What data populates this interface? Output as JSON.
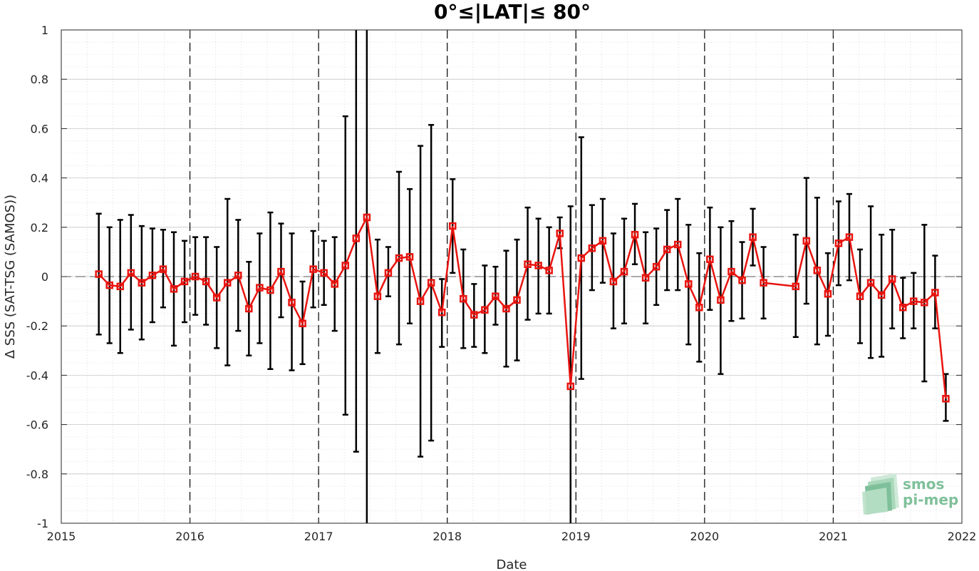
{
  "chart_data": {
    "type": "line",
    "title": "0°≤|LAT|≤ 80°",
    "xlabel": "Date",
    "ylabel": "Δ SSS (SAT-TSG (SAMOS))",
    "xlim": [
      2015,
      2022
    ],
    "ylim": [
      -1,
      1
    ],
    "x_ticks": [
      2015,
      2016,
      2017,
      2018,
      2019,
      2020,
      2021,
      2022
    ],
    "x_tick_labels": [
      "2015",
      "2016",
      "2017",
      "2018",
      "2019",
      "2020",
      "2021",
      "2022"
    ],
    "y_ticks": [
      -1,
      -0.8,
      -0.6,
      -0.4,
      -0.2,
      0,
      0.2,
      0.4,
      0.6,
      0.8,
      1
    ],
    "y_tick_labels": [
      "-1",
      "-0.8",
      "-0.6",
      "-0.4",
      "-0.2",
      "0",
      "0.2",
      "0.4",
      "0.6",
      "0.8",
      "1"
    ],
    "year_lines": [
      2016,
      2017,
      2018,
      2019,
      2020,
      2021
    ],
    "grid": true,
    "zero_line": true,
    "series": [
      {
        "color": "#e8140f",
        "errorbar_color": "#000000",
        "marker": "square",
        "points": [
          {
            "x": "2015-04",
            "y": 0.01,
            "lo": -0.235,
            "hi": 0.255
          },
          {
            "x": "2015-05",
            "y": -0.035,
            "lo": -0.27,
            "hi": 0.2
          },
          {
            "x": "2015-06",
            "y": -0.04,
            "lo": -0.31,
            "hi": 0.23
          },
          {
            "x": "2015-07",
            "y": 0.015,
            "lo": -0.215,
            "hi": 0.25
          },
          {
            "x": "2015-08",
            "y": -0.025,
            "lo": -0.255,
            "hi": 0.205
          },
          {
            "x": "2015-09",
            "y": 0.005,
            "lo": -0.185,
            "hi": 0.195
          },
          {
            "x": "2015-10",
            "y": 0.03,
            "lo": -0.125,
            "hi": 0.19
          },
          {
            "x": "2015-11",
            "y": -0.05,
            "lo": -0.28,
            "hi": 0.18
          },
          {
            "x": "2015-12",
            "y": -0.02,
            "lo": -0.185,
            "hi": 0.145
          },
          {
            "x": "2016-01",
            "y": 0.0,
            "lo": -0.155,
            "hi": 0.16
          },
          {
            "x": "2016-02",
            "y": -0.02,
            "lo": -0.195,
            "hi": 0.16
          },
          {
            "x": "2016-03",
            "y": -0.085,
            "lo": -0.29,
            "hi": 0.12
          },
          {
            "x": "2016-04",
            "y": -0.025,
            "lo": -0.36,
            "hi": 0.315
          },
          {
            "x": "2016-05",
            "y": 0.005,
            "lo": -0.22,
            "hi": 0.23
          },
          {
            "x": "2016-06",
            "y": -0.13,
            "lo": -0.32,
            "hi": 0.06
          },
          {
            "x": "2016-07",
            "y": -0.045,
            "lo": -0.27,
            "hi": 0.175
          },
          {
            "x": "2016-08",
            "y": -0.055,
            "lo": -0.375,
            "hi": 0.26
          },
          {
            "x": "2016-09",
            "y": 0.02,
            "lo": -0.165,
            "hi": 0.215
          },
          {
            "x": "2016-10",
            "y": -0.105,
            "lo": -0.38,
            "hi": 0.175
          },
          {
            "x": "2016-11",
            "y": -0.19,
            "lo": -0.355,
            "hi": -0.02
          },
          {
            "x": "2016-12",
            "y": 0.03,
            "lo": -0.125,
            "hi": 0.185
          },
          {
            "x": "2017-01",
            "y": 0.015,
            "lo": -0.115,
            "hi": 0.145
          },
          {
            "x": "2017-02",
            "y": -0.03,
            "lo": -0.22,
            "hi": 0.16
          },
          {
            "x": "2017-03",
            "y": 0.045,
            "lo": -0.56,
            "hi": 0.65
          },
          {
            "x": "2017-04",
            "y": 0.155,
            "lo": -0.71,
            "hi": 1.0
          },
          {
            "x": "2017-05",
            "y": 0.24,
            "lo": -1.0,
            "hi": 1.0
          },
          {
            "x": "2017-06",
            "y": -0.08,
            "lo": -0.31,
            "hi": 0.15
          },
          {
            "x": "2017-07",
            "y": 0.015,
            "lo": -0.08,
            "hi": 0.12
          },
          {
            "x": "2017-08",
            "y": 0.075,
            "lo": -0.275,
            "hi": 0.425
          },
          {
            "x": "2017-09",
            "y": 0.08,
            "lo": -0.19,
            "hi": 0.355
          },
          {
            "x": "2017-10",
            "y": -0.1,
            "lo": -0.73,
            "hi": 0.53
          },
          {
            "x": "2017-11",
            "y": -0.025,
            "lo": -0.665,
            "hi": 0.615
          },
          {
            "x": "2017-12",
            "y": -0.145,
            "lo": -0.285,
            "hi": -0.01
          },
          {
            "x": "2018-01",
            "y": 0.205,
            "lo": 0.015,
            "hi": 0.395
          },
          {
            "x": "2018-02",
            "y": -0.09,
            "lo": -0.29,
            "hi": 0.11
          },
          {
            "x": "2018-03",
            "y": -0.155,
            "lo": -0.285,
            "hi": -0.03
          },
          {
            "x": "2018-04",
            "y": -0.135,
            "lo": -0.31,
            "hi": 0.045
          },
          {
            "x": "2018-05",
            "y": -0.08,
            "lo": -0.195,
            "hi": 0.04
          },
          {
            "x": "2018-06",
            "y": -0.13,
            "lo": -0.365,
            "hi": 0.105
          },
          {
            "x": "2018-07",
            "y": -0.095,
            "lo": -0.34,
            "hi": 0.15
          },
          {
            "x": "2018-08",
            "y": 0.05,
            "lo": -0.175,
            "hi": 0.28
          },
          {
            "x": "2018-09",
            "y": 0.045,
            "lo": -0.15,
            "hi": 0.235
          },
          {
            "x": "2018-10",
            "y": 0.025,
            "lo": -0.15,
            "hi": 0.2
          },
          {
            "x": "2018-11",
            "y": 0.175,
            "lo": 0.115,
            "hi": 0.24
          },
          {
            "x": "2018-12",
            "y": -0.445,
            "lo": -1.0,
            "hi": 0.285
          },
          {
            "x": "2019-01",
            "y": 0.075,
            "lo": -0.415,
            "hi": 0.565
          },
          {
            "x": "2019-02",
            "y": 0.115,
            "lo": -0.055,
            "hi": 0.29
          },
          {
            "x": "2019-03",
            "y": 0.145,
            "lo": -0.025,
            "hi": 0.315
          },
          {
            "x": "2019-04",
            "y": -0.02,
            "lo": -0.21,
            "hi": 0.175
          },
          {
            "x": "2019-05",
            "y": 0.02,
            "lo": -0.19,
            "hi": 0.235
          },
          {
            "x": "2019-06",
            "y": 0.17,
            "lo": 0.05,
            "hi": 0.295
          },
          {
            "x": "2019-07",
            "y": -0.005,
            "lo": -0.19,
            "hi": 0.18
          },
          {
            "x": "2019-08",
            "y": 0.04,
            "lo": -0.115,
            "hi": 0.195
          },
          {
            "x": "2019-09",
            "y": 0.11,
            "lo": -0.055,
            "hi": 0.27
          },
          {
            "x": "2019-10",
            "y": 0.13,
            "lo": -0.055,
            "hi": 0.315
          },
          {
            "x": "2019-11",
            "y": -0.03,
            "lo": -0.275,
            "hi": 0.21
          },
          {
            "x": "2019-12",
            "y": -0.125,
            "lo": -0.345,
            "hi": 0.095
          },
          {
            "x": "2020-01",
            "y": 0.07,
            "lo": -0.135,
            "hi": 0.28
          },
          {
            "x": "2020-02",
            "y": -0.095,
            "lo": -0.395,
            "hi": 0.2
          },
          {
            "x": "2020-03",
            "y": 0.02,
            "lo": -0.18,
            "hi": 0.225
          },
          {
            "x": "2020-04",
            "y": -0.015,
            "lo": -0.17,
            "hi": 0.14
          },
          {
            "x": "2020-05",
            "y": 0.16,
            "lo": 0.045,
            "hi": 0.275
          },
          {
            "x": "2020-06",
            "y": -0.025,
            "lo": -0.17,
            "hi": 0.12
          },
          {
            "x": "2020-09",
            "y": -0.04,
            "lo": -0.245,
            "hi": 0.17
          },
          {
            "x": "2020-10",
            "y": 0.145,
            "lo": -0.11,
            "hi": 0.4
          },
          {
            "x": "2020-11",
            "y": 0.025,
            "lo": -0.275,
            "hi": 0.32
          },
          {
            "x": "2020-12",
            "y": -0.07,
            "lo": -0.24,
            "hi": 0.095
          },
          {
            "x": "2021-01",
            "y": 0.135,
            "lo": -0.035,
            "hi": 0.305
          },
          {
            "x": "2021-02",
            "y": 0.16,
            "lo": -0.015,
            "hi": 0.335
          },
          {
            "x": "2021-03",
            "y": -0.08,
            "lo": -0.27,
            "hi": 0.11
          },
          {
            "x": "2021-04",
            "y": -0.025,
            "lo": -0.33,
            "hi": 0.285
          },
          {
            "x": "2021-05",
            "y": -0.075,
            "lo": -0.325,
            "hi": 0.17
          },
          {
            "x": "2021-06",
            "y": -0.01,
            "lo": -0.21,
            "hi": 0.19
          },
          {
            "x": "2021-07",
            "y": -0.125,
            "lo": -0.25,
            "hi": -0.005
          },
          {
            "x": "2021-08",
            "y": -0.1,
            "lo": -0.21,
            "hi": 0.015
          },
          {
            "x": "2021-09",
            "y": -0.105,
            "lo": -0.425,
            "hi": 0.21
          },
          {
            "x": "2021-10",
            "y": -0.065,
            "lo": -0.21,
            "hi": 0.085
          },
          {
            "x": "2021-11",
            "y": -0.495,
            "lo": -0.585,
            "hi": -0.395
          }
        ]
      }
    ],
    "logo": {
      "line1": "smos",
      "line2": "pi-mep",
      "color": "#7fc09a"
    }
  }
}
